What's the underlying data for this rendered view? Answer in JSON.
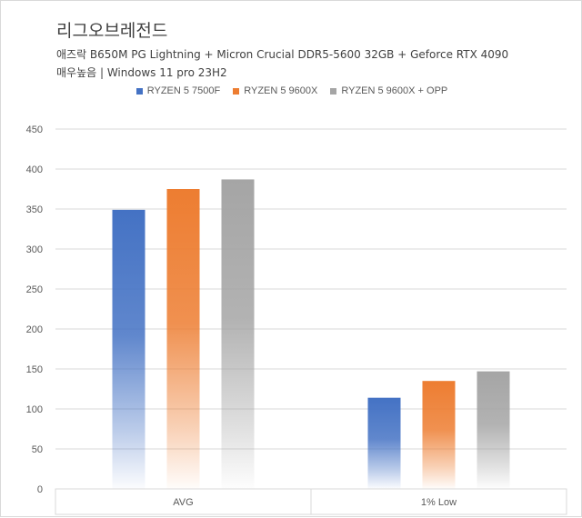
{
  "title": "리그오브레전드",
  "subtitle_line1": "애즈락 B650M PG Lightning + Micron Crucial DDR5-5600 32GB + Geforce RTX 4090",
  "subtitle_line2": "매우높음 | Windows 11 pro 23H2",
  "chart_data": {
    "type": "bar",
    "categories": [
      "AVG",
      "1% Low"
    ],
    "series": [
      {
        "name": "RYZEN 5 7500F",
        "values": [
          349,
          114
        ],
        "color": "#4472c4"
      },
      {
        "name": "RYZEN 5 9600X",
        "values": [
          375,
          135
        ],
        "color": "#ed7d31"
      },
      {
        "name": "RYZEN 5 9600X + OPP",
        "values": [
          387,
          147
        ],
        "color": "#a5a5a5"
      }
    ],
    "ylim": [
      0,
      450
    ],
    "yticks": [
      0,
      50,
      100,
      150,
      200,
      250,
      300,
      350,
      400,
      450
    ],
    "grid": true,
    "legend_position": "top-center"
  }
}
